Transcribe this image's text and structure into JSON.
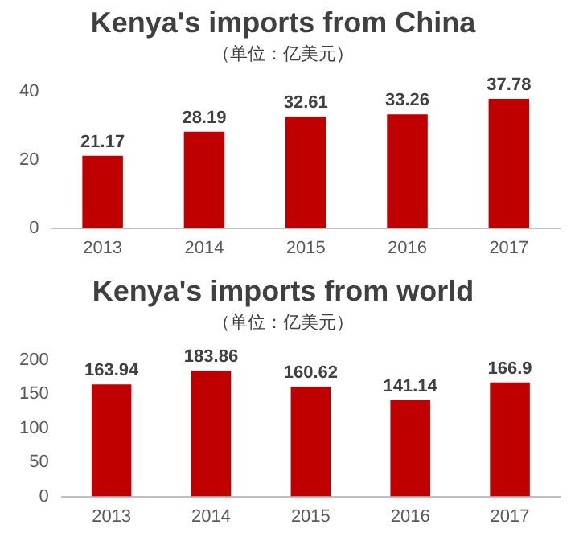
{
  "chart_data": [
    {
      "type": "bar",
      "title": "Kenya's imports from China",
      "subtitle": "（单位：亿美元）",
      "categories": [
        "2013",
        "2014",
        "2015",
        "2016",
        "2017"
      ],
      "values": [
        21.17,
        28.19,
        32.61,
        33.26,
        37.78
      ],
      "color": "#c00000",
      "ylim": [
        0,
        40
      ],
      "yticks": [
        0,
        20,
        40
      ],
      "grid": false,
      "data_labels": true
    },
    {
      "type": "bar",
      "title": "Kenya's imports from world",
      "subtitle": "（单位：亿美元）",
      "categories": [
        "2013",
        "2014",
        "2015",
        "2016",
        "2017"
      ],
      "values": [
        163.94,
        183.86,
        160.62,
        141.14,
        166.9
      ],
      "color": "#c00000",
      "ylim": [
        0,
        200
      ],
      "yticks": [
        0,
        50,
        100,
        150,
        200
      ],
      "grid": false,
      "data_labels": true
    }
  ]
}
